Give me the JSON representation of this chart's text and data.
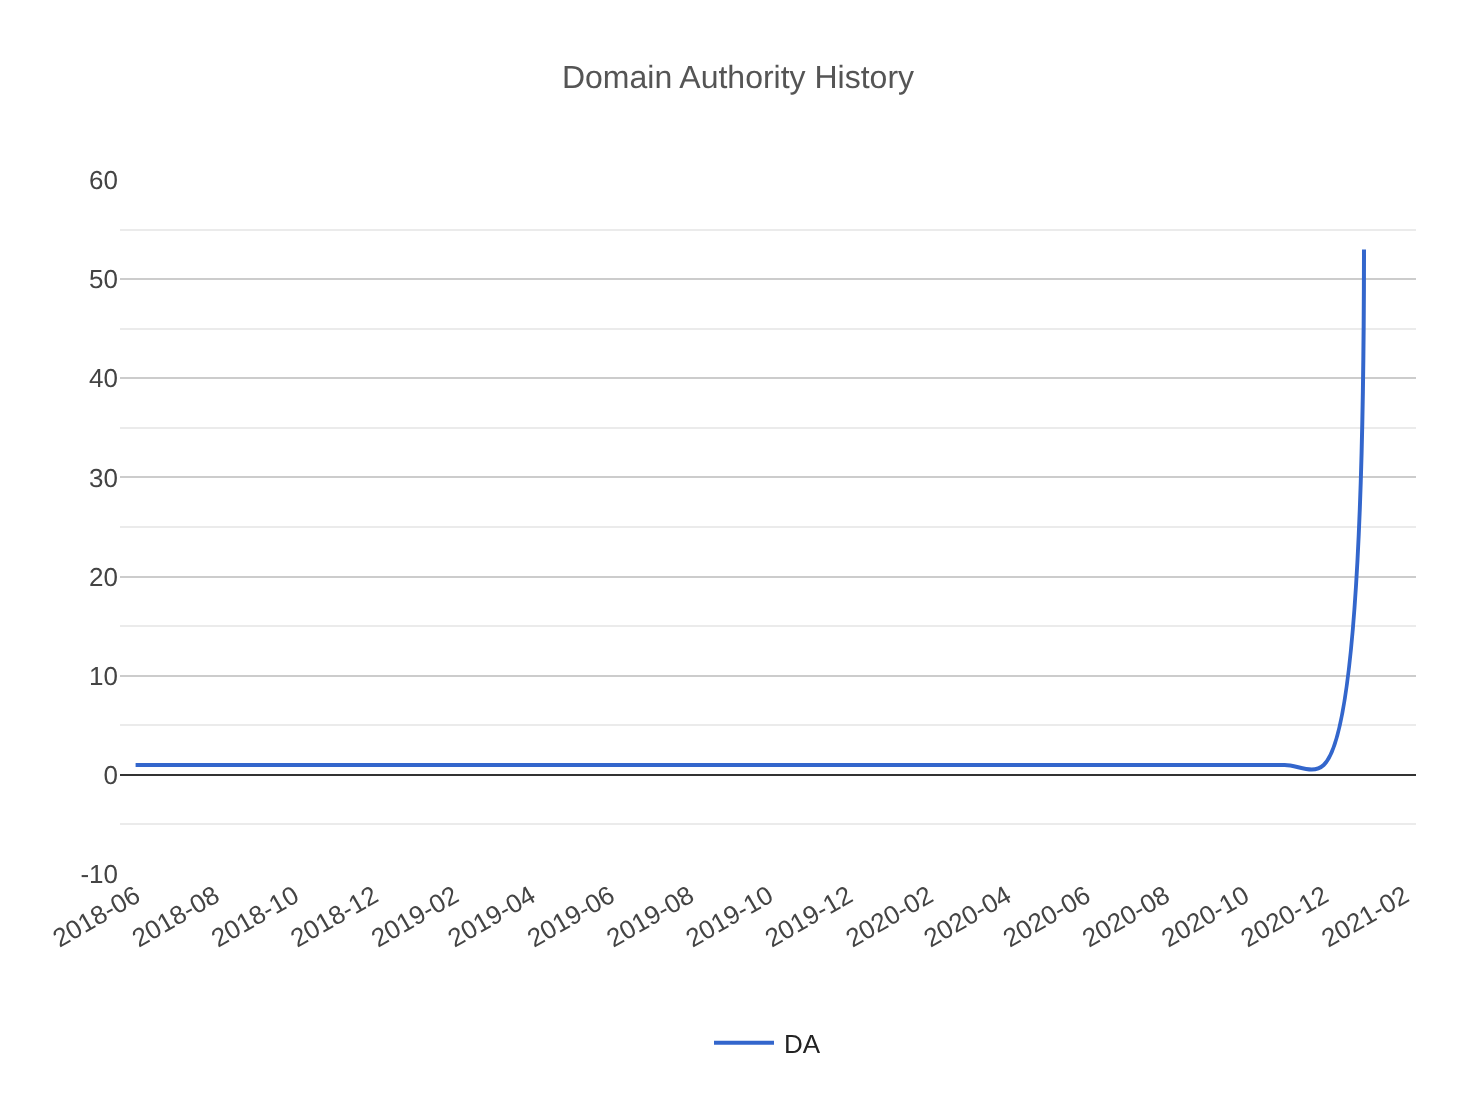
{
  "chart_data": {
    "type": "line",
    "title": "Domain Authority History",
    "x": [
      "2018-06",
      "2018-07",
      "2018-08",
      "2018-09",
      "2018-10",
      "2018-11",
      "2018-12",
      "2019-01",
      "2019-02",
      "2019-03",
      "2019-04",
      "2019-05",
      "2019-06",
      "2019-07",
      "2019-08",
      "2019-09",
      "2019-10",
      "2019-11",
      "2019-12",
      "2020-01",
      "2020-02",
      "2020-03",
      "2020-04",
      "2020-05",
      "2020-06",
      "2020-07",
      "2020-08",
      "2020-09",
      "2020-10",
      "2020-11",
      "2020-12",
      "2021-01"
    ],
    "series": [
      {
        "name": "DA",
        "color": "#3366cc",
        "values": [
          1,
          1,
          1,
          1,
          1,
          1,
          1,
          1,
          1,
          1,
          1,
          1,
          1,
          1,
          1,
          1,
          1,
          1,
          1,
          1,
          1,
          1,
          1,
          1,
          1,
          1,
          1,
          1,
          1,
          1,
          1,
          53
        ]
      }
    ],
    "xlim": [
      "2018-05-20",
      "2021-02-10"
    ],
    "xticks": [
      "2018-06",
      "2018-08",
      "2018-10",
      "2018-12",
      "2019-02",
      "2019-04",
      "2019-06",
      "2019-08",
      "2019-10",
      "2019-12",
      "2020-02",
      "2020-04",
      "2020-06",
      "2020-08",
      "2020-10",
      "2020-12",
      "2021-02"
    ],
    "ylim": [
      -10,
      60
    ],
    "yticks": [
      -10,
      0,
      10,
      20,
      30,
      40,
      50,
      60
    ],
    "grid": "y",
    "legend": "bottom",
    "line_style": "solid",
    "marker": "none"
  }
}
